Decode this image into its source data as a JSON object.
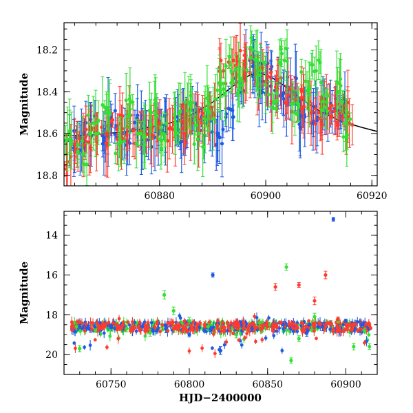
{
  "chart_data": [
    {
      "type": "scatter",
      "panel": "top",
      "title": "",
      "xlabel": "",
      "ylabel": "Magnitude",
      "xlim": [
        60862,
        60921
      ],
      "ylim": [
        18.85,
        18.07
      ],
      "y_inverted": true,
      "x_ticks": [
        60880,
        60900,
        60920
      ],
      "x_tick_labels": [
        "60880",
        "60900",
        "60920"
      ],
      "y_ticks": [
        18.2,
        18.4,
        18.6,
        18.8
      ],
      "y_tick_labels": [
        "18.2",
        "18.4",
        "18.6",
        "18.8"
      ],
      "grid": false,
      "series": [
        {
          "color": "#1e5be0",
          "x": [
            60863.5,
            60865,
            60867,
            60869.5,
            60871,
            60873,
            60875,
            60877.5,
            60879.5,
            60881,
            60883.5,
            60885,
            60887,
            60889,
            60891,
            60893,
            60895,
            60897,
            60898.5,
            60899.5,
            60901,
            60903,
            60905,
            60907,
            60909,
            60911,
            60913,
            60915
          ],
          "y": [
            18.65,
            18.62,
            18.58,
            18.62,
            18.55,
            18.6,
            18.58,
            18.6,
            18.55,
            18.56,
            18.58,
            18.55,
            18.52,
            18.55,
            18.6,
            18.48,
            18.35,
            18.25,
            18.3,
            18.35,
            18.33,
            18.42,
            18.4,
            18.52,
            18.5,
            18.45,
            18.48,
            18.5
          ]
        },
        {
          "color": "#ff3b2f",
          "x": [
            60862.5,
            60864,
            60866,
            60868,
            60870,
            60872,
            60874,
            60876,
            60878,
            60880,
            60882,
            60884,
            60886,
            60888,
            60890,
            60892,
            60894,
            60896,
            60898,
            60900,
            60902,
            60904,
            60906,
            60908,
            60910,
            60912,
            60914,
            60915.5
          ],
          "y": [
            18.7,
            18.65,
            18.62,
            18.6,
            18.6,
            18.58,
            18.57,
            18.6,
            18.58,
            18.55,
            18.57,
            18.54,
            18.55,
            18.55,
            18.5,
            18.3,
            18.25,
            18.27,
            18.3,
            18.35,
            18.4,
            18.45,
            18.45,
            18.48,
            18.5,
            18.48,
            18.5,
            18.52
          ]
        },
        {
          "color": "#33e033",
          "x": [
            60863,
            60865.5,
            60867.5,
            60870,
            60872.5,
            60874.5,
            60876.5,
            60878.5,
            60881,
            60883,
            60885.5,
            60887.5,
            60889.5,
            60891.5,
            60893.5,
            60895.5,
            60897.5,
            60899,
            60901.5,
            60903.5,
            60905.5,
            60907.5,
            60909.5,
            60911.5,
            60913.5,
            60915
          ],
          "y": [
            18.6,
            18.7,
            18.55,
            18.5,
            18.65,
            18.45,
            18.6,
            18.5,
            18.62,
            18.55,
            18.45,
            18.6,
            18.5,
            18.4,
            18.3,
            18.35,
            18.2,
            18.3,
            18.45,
            18.25,
            18.5,
            18.35,
            18.3,
            18.45,
            18.4,
            18.55
          ]
        }
      ],
      "model_curve": {
        "color": "#000000",
        "x": [
          60862,
          60866,
          60870,
          60874,
          60878,
          60882,
          60886,
          60890,
          60894,
          60897,
          60899,
          60901,
          60904,
          60907,
          60910,
          60914,
          60918,
          60921
        ],
        "y": [
          18.61,
          18.61,
          18.6,
          18.59,
          18.57,
          18.55,
          18.51,
          18.45,
          18.37,
          18.32,
          18.31,
          18.33,
          18.38,
          18.44,
          18.49,
          18.54,
          18.57,
          18.59
        ]
      }
    },
    {
      "type": "scatter",
      "panel": "bottom",
      "title": "",
      "xlabel": "HJD−2400000",
      "ylabel": "Magnitude",
      "xlim": [
        60720,
        60920
      ],
      "ylim": [
        21,
        12.8
      ],
      "y_inverted": true,
      "x_ticks": [
        60750,
        60800,
        60850,
        60900
      ],
      "x_tick_labels": [
        "60750",
        "60800",
        "60850",
        "60900"
      ],
      "y_ticks": [
        14,
        16,
        18,
        20
      ],
      "y_tick_labels": [
        "14",
        "16",
        "18",
        "20"
      ],
      "grid": false,
      "series": [
        {
          "color": "#33e033",
          "x": [
            60728,
            60730,
            60740,
            60760,
            60775,
            60784,
            60790,
            60800,
            60812,
            60830,
            60845,
            60862,
            60865,
            60870,
            60880,
            60895,
            60905,
            60912,
            60915
          ],
          "y": [
            18.6,
            19.7,
            18.8,
            18.7,
            18.9,
            17.0,
            17.8,
            18.3,
            18.6,
            19.0,
            18.4,
            15.6,
            20.3,
            19.2,
            18.1,
            18.3,
            19.6,
            18.8,
            19.6
          ]
        },
        {
          "color": "#1e5be0",
          "x": [
            60730,
            60750,
            60770,
            60785,
            60800,
            60815,
            60820,
            60840,
            60860,
            60875,
            60885,
            60892,
            60900,
            60910
          ],
          "y": [
            18.6,
            18.6,
            18.6,
            18.7,
            19.0,
            16.0,
            19.8,
            18.7,
            18.5,
            18.9,
            18.6,
            13.2,
            18.3,
            18.5
          ]
        },
        {
          "color": "#ff3b2f",
          "x": [
            60725,
            60745,
            60765,
            60790,
            60810,
            60825,
            60850,
            60855,
            60870,
            60880,
            60887,
            60895,
            60905,
            60915
          ],
          "y": [
            18.6,
            18.6,
            18.65,
            18.7,
            18.5,
            18.6,
            18.6,
            16.6,
            16.5,
            17.3,
            16.0,
            18.2,
            18.5,
            18.5
          ]
        }
      ],
      "band": {
        "x_start": 60725,
        "x_end": 60916,
        "y_center": 18.6
      }
    }
  ]
}
